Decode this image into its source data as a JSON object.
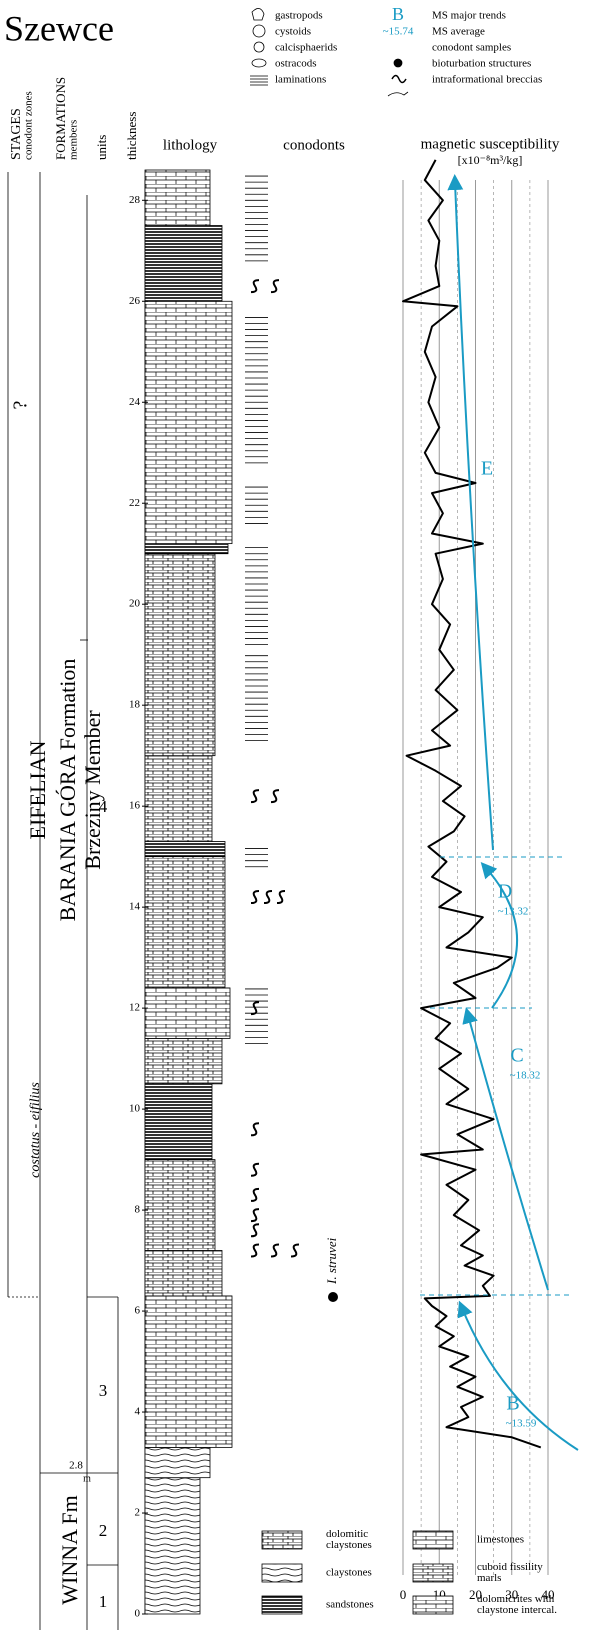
{
  "title": "Szewce",
  "legend": [
    "gastropods",
    "cystoids",
    "calcisphaerids",
    "ostracods",
    "laminations"
  ],
  "legend2": [
    {
      "symbol": "B",
      "label": "MS major trends"
    },
    {
      "symbol": "~15.74",
      "label": "MS average"
    },
    {
      "label": "conodont samples"
    },
    {
      "label": "bioturbation structures"
    },
    {
      "label": "intraformational breccias"
    }
  ],
  "columns": {
    "stages": "STAGES",
    "conodont_zones": "conodont zones",
    "formations": "FORMATIONS",
    "members": "members",
    "units": "units",
    "thickness": "thickness",
    "lithology": "lithology",
    "conodonts": "conodonts",
    "ms": "magnetic susceptibility",
    "ms_unit": "[x10⁻⁸m³/kg]"
  },
  "stratigraphy": {
    "unknown": "?",
    "stage": "EIFELIAN",
    "zone": "costatus - eifilius",
    "formation": "BARANIA GÓRA Formation",
    "member": "Brzeziny Member",
    "formation2": "WINNA Fm",
    "boundary": "2.8",
    "boundary_unit": "m",
    "units": [
      "4",
      "3",
      "2",
      "1"
    ]
  },
  "conodont_sample": "I. struvei",
  "thickness_ticks": [
    0,
    2,
    4,
    6,
    8,
    10,
    12,
    14,
    16,
    18,
    20,
    22,
    24,
    26,
    28
  ],
  "depth_lim": [
    0,
    28.6
  ],
  "ms": {
    "xlim": [
      0,
      40
    ],
    "xticks": [
      0,
      10,
      20,
      30,
      40
    ],
    "depth": [
      3.3,
      3.5,
      3.7,
      3.9,
      4.1,
      4.3,
      4.5,
      4.7,
      4.9,
      5.1,
      5.3,
      5.5,
      5.7,
      5.9,
      6.1,
      6.25,
      6.3,
      6.5,
      6.7,
      6.9,
      7.1,
      7.3,
      7.6,
      7.9,
      8.2,
      8.5,
      8.8,
      9.1,
      9.2,
      9.5,
      9.8,
      10.1,
      10.4,
      10.8,
      11.1,
      11.4,
      11.7,
      12.0,
      12.2,
      12.5,
      12.8,
      13.0,
      13.2,
      13.5,
      13.8,
      14.0,
      14.3,
      14.6,
      14.9,
      15.2,
      15.5,
      15.8,
      16.1,
      16.4,
      16.7,
      17.0,
      17.2,
      17.5,
      17.9,
      18.3,
      18.7,
      19.1,
      19.6,
      20.0,
      20.5,
      21.0,
      21.2,
      21.4,
      21.8,
      22.2,
      22.4,
      22.6,
      23.0,
      23.5,
      24.0,
      24.5,
      25.0,
      25.5,
      25.9,
      26.0,
      26.3,
      26.7,
      27.2,
      27.6,
      28.0,
      28.4,
      28.8
    ],
    "values": [
      38,
      30,
      12,
      18,
      16,
      22,
      15,
      20,
      13,
      18,
      10,
      14,
      9,
      12,
      8,
      6,
      24,
      22,
      25,
      17,
      22,
      16,
      21,
      14,
      18,
      12,
      20,
      5,
      22,
      15,
      25,
      12,
      18,
      10,
      16,
      9,
      13,
      5,
      20,
      14,
      26,
      30,
      12,
      18,
      22,
      10,
      16,
      8,
      12,
      7,
      14,
      17,
      11,
      16,
      9,
      1,
      13,
      8,
      15,
      9,
      14,
      10,
      13,
      8,
      11,
      9,
      22,
      8,
      11,
      8,
      20,
      9,
      6,
      10,
      7,
      9,
      6,
      8,
      15,
      0,
      10,
      9,
      10,
      7,
      11,
      6,
      9
    ],
    "trends": [
      {
        "label": "B",
        "average": "~13.59"
      },
      {
        "label": "C",
        "average": "~18.32"
      },
      {
        "label": "D",
        "average": "~13.32"
      },
      {
        "label": "E"
      }
    ]
  },
  "lithology_legend": [
    [
      "dolomitic",
      "claystones"
    ],
    [
      "claystones"
    ],
    [
      "sandstones"
    ],
    [
      "limestones"
    ],
    [
      "cuboid fissility",
      "marls"
    ],
    [
      "dolomicrites with",
      "claystone intercal."
    ]
  ]
}
